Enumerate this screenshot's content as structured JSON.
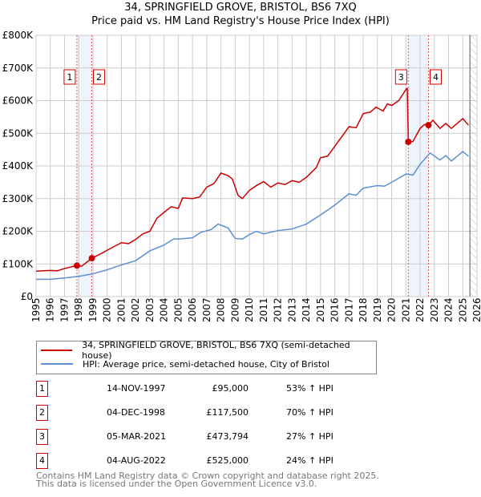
{
  "title": "34, SPRINGFIELD GROVE, BRISTOL, BS6 7XQ",
  "subtitle": "Price paid vs. HM Land Registry's House Price Index (HPI)",
  "colors": {
    "property": "#cc0000",
    "hpi": "#5b8fd6",
    "band": "#eef4fc"
  },
  "chart_data": {
    "type": "line",
    "xlim": [
      1995,
      2026
    ],
    "ylim": [
      0,
      800000
    ],
    "x_ticks": [
      "1995",
      "1996",
      "1997",
      "1998",
      "1999",
      "2000",
      "2001",
      "2002",
      "2003",
      "2004",
      "2005",
      "2006",
      "2007",
      "2008",
      "2009",
      "2010",
      "2011",
      "2012",
      "2013",
      "2014",
      "2015",
      "2016",
      "2017",
      "2018",
      "2019",
      "2020",
      "2021",
      "2022",
      "2023",
      "2024",
      "2025",
      "2026"
    ],
    "y_ticks": [
      {
        "v": 0,
        "label": "£0"
      },
      {
        "v": 100000,
        "label": "£100K"
      },
      {
        "v": 200000,
        "label": "£200K"
      },
      {
        "v": 300000,
        "label": "£300K"
      },
      {
        "v": 400000,
        "label": "£400K"
      },
      {
        "v": 500000,
        "label": "£500K"
      },
      {
        "v": 600000,
        "label": "£600K"
      },
      {
        "v": 700000,
        "label": "£700K"
      },
      {
        "v": 800000,
        "label": "£800K"
      }
    ],
    "series": [
      {
        "name": "34, SPRINGFIELD GROVE, BRISTOL, BS6 7XQ (semi-detached house)",
        "color": "#cc0000",
        "x": [
          1995,
          1996,
          1996.5,
          1997,
          1997.87,
          1998.2,
          1998.92,
          1999.5,
          2000,
          2001,
          2001.5,
          2002,
          2002.5,
          2003,
          2003.5,
          2004,
          2004.5,
          2005,
          2005.3,
          2006,
          2006.5,
          2007,
          2007.5,
          2008,
          2008.5,
          2008.8,
          2009.2,
          2009.5,
          2010,
          2010.5,
          2011,
          2011.5,
          2012,
          2012.5,
          2013,
          2013.5,
          2014,
          2014.7,
          2015,
          2015.5,
          2016,
          2016.5,
          2017,
          2017.5,
          2018,
          2018.5,
          2018.9,
          2019.4,
          2019.7,
          2020,
          2020.5,
          2021.05,
          2021.1,
          2021.17,
          2021.5,
          2022,
          2022.3,
          2022.59,
          2022.9,
          2023.4,
          2023.8,
          2024.2,
          2025,
          2025.4
        ],
        "y": [
          78000,
          80000,
          79000,
          86000,
          95000,
          93000,
          117500,
          130000,
          142000,
          165000,
          162000,
          175000,
          192000,
          200000,
          240000,
          258000,
          275000,
          270000,
          302000,
          300000,
          305000,
          335000,
          346000,
          378000,
          370000,
          360000,
          310000,
          300000,
          325000,
          340000,
          352000,
          335000,
          348000,
          343000,
          355000,
          350000,
          365000,
          395000,
          425000,
          430000,
          460000,
          490000,
          520000,
          517000,
          560000,
          565000,
          580000,
          568000,
          590000,
          585000,
          600000,
          637000,
          637000,
          473794,
          475000,
          515000,
          527000,
          525000,
          540000,
          515000,
          530000,
          515000,
          545000,
          525000
        ]
      },
      {
        "name": "HPI: Average price, semi-detached house, City of Bristol",
        "color": "#5b8fd6",
        "x": [
          1995,
          1996,
          1997,
          1998,
          1999,
          2000,
          2001,
          2002,
          2003,
          2004,
          2004.7,
          2005,
          2006,
          2006.6,
          2007.3,
          2007.8,
          2008.5,
          2009,
          2009.5,
          2010,
          2010.5,
          2011,
          2012,
          2013,
          2014,
          2015,
          2016,
          2017,
          2017.5,
          2018,
          2019,
          2019.5,
          2020,
          2021,
          2021.5,
          2022,
          2022.7,
          2023.4,
          2023.8,
          2024.2,
          2025,
          2025.4
        ],
        "y": [
          53000,
          53000,
          57000,
          62000,
          70000,
          82000,
          97000,
          110000,
          140000,
          158000,
          177000,
          176000,
          180000,
          197000,
          205000,
          222000,
          210000,
          178000,
          176000,
          190000,
          200000,
          192000,
          202000,
          207000,
          222000,
          250000,
          280000,
          315000,
          310000,
          332000,
          340000,
          338000,
          350000,
          375000,
          372000,
          405000,
          440000,
          418000,
          432000,
          415000,
          444000,
          430000
        ]
      }
    ],
    "sales": [
      {
        "n": "1",
        "x": 1997.87,
        "y": 95000
      },
      {
        "n": "2",
        "x": 1998.92,
        "y": 117500
      },
      {
        "n": "3",
        "x": 2021.17,
        "y": 473794
      },
      {
        "n": "4",
        "x": 2022.59,
        "y": 525000
      }
    ],
    "bands": [
      [
        1997.87,
        1998.92
      ],
      [
        2021.17,
        2022.59
      ]
    ],
    "forecast_start": 2025.5
  },
  "legend": [
    "34, SPRINGFIELD GROVE, BRISTOL, BS6 7XQ (semi-detached house)",
    "HPI: Average price, semi-detached house, City of Bristol"
  ],
  "table": [
    {
      "n": "1",
      "date": "14-NOV-1997",
      "price": "£95,000",
      "hpi": "53% ↑ HPI"
    },
    {
      "n": "2",
      "date": "04-DEC-1998",
      "price": "£117,500",
      "hpi": "70% ↑ HPI"
    },
    {
      "n": "3",
      "date": "05-MAR-2021",
      "price": "£473,794",
      "hpi": "27% ↑ HPI"
    },
    {
      "n": "4",
      "date": "04-AUG-2022",
      "price": "£525,000",
      "hpi": "24% ↑ HPI"
    }
  ],
  "footer": [
    "Contains HM Land Registry data © Crown copyright and database right 2025.",
    "This data is licensed under the Open Government Licence v3.0."
  ]
}
